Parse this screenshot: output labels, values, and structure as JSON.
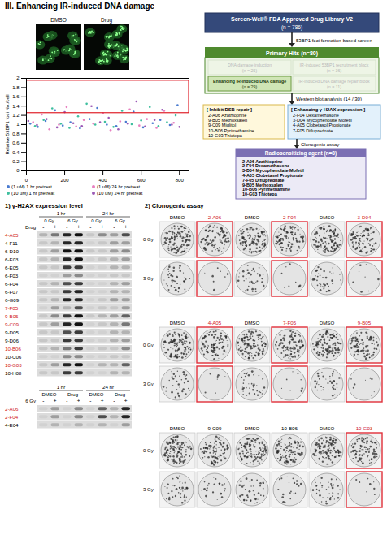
{
  "title": "III. Enhancing IR-induced DNA damage",
  "micrographs": {
    "labels": [
      "DMSO",
      "Drug"
    ]
  },
  "chart_data": {
    "type": "scatter",
    "ylabel": "Relative 53BP1 foci No./cell",
    "xlim": [
      0,
      850
    ],
    "xticks": [
      0,
      200,
      400,
      600,
      800
    ],
    "ylim": [
      0,
      2
    ],
    "yticks": [
      0,
      0.2,
      0.4,
      0.6,
      0.8,
      1,
      1.2,
      1.4,
      1.6,
      1.8,
      2
    ],
    "grid": false,
    "legend": "bottom",
    "highlight_box": {
      "x": [
        0,
        850
      ],
      "y": [
        1.25,
        1.95
      ],
      "color": "#e0202a"
    },
    "series": [
      {
        "name": "(1 uM) 1 hr pretreat",
        "color": "#4a7bd0",
        "x": [
          20,
          60,
          100,
          150,
          190,
          230,
          280,
          330,
          370,
          420,
          470,
          520,
          560,
          610,
          660,
          700,
          750,
          790
        ],
        "values": [
          1.02,
          0.95,
          1.08,
          1.31,
          0.98,
          1.05,
          0.92,
          1.12,
          1.36,
          1.0,
          0.97,
          1.06,
          1.28,
          0.94,
          1.03,
          1.1,
          0.99,
          1.42
        ]
      },
      {
        "name": "(1 uM) 24 hr pretreat",
        "color": "#e87fc0",
        "x": [
          35,
          80,
          120,
          170,
          210,
          260,
          300,
          350,
          400,
          440,
          490,
          540,
          590,
          630,
          680,
          720,
          770
        ],
        "values": [
          1.05,
          1.22,
          0.9,
          1.0,
          1.38,
          0.96,
          1.1,
          1.02,
          1.25,
          0.88,
          1.07,
          1.33,
          0.98,
          1.12,
          0.93,
          1.3,
          1.04
        ]
      },
      {
        "name": "(10 uM) 1 hr pretreat",
        "color": "#3fbf9f",
        "x": [
          45,
          90,
          135,
          180,
          225,
          270,
          315,
          360,
          410,
          455,
          500,
          550,
          600,
          645,
          690,
          735,
          780
        ],
        "values": [
          0.97,
          1.1,
          1.35,
          1.02,
          0.93,
          1.18,
          1.45,
          1.0,
          1.06,
          0.95,
          1.3,
          1.01,
          1.09,
          1.38,
          0.97,
          1.05,
          1.2
        ]
      },
      {
        "name": "(10 uM) 24 hr pretreat",
        "color": "#9b59b6",
        "x": [
          10,
          55,
          105,
          160,
          200,
          245,
          290,
          340,
          385,
          430,
          480,
          530,
          575,
          620,
          670,
          710,
          760,
          800
        ],
        "values": [
          1.08,
          0.99,
          1.12,
          0.94,
          1.27,
          1.03,
          0.97,
          1.4,
          1.05,
          1.15,
          0.9,
          1.02,
          1.5,
          0.96,
          1.1,
          1.32,
          1.0,
          0.95
        ]
      }
    ]
  },
  "flow": {
    "library": "Screen-Well® FDA Approved Drug Library V2",
    "library_n": "(n = 786)",
    "step1": "53BP1 foci formation-based screen",
    "primary": "Primary Hits (n=80)",
    "categories": [
      {
        "text": "DNA damage induction",
        "n": "(n = 25)",
        "selected": false
      },
      {
        "text": "IR-induced 53BP1 recruitment block",
        "n": "(n = 36)",
        "selected": false
      },
      {
        "text": "Enhancing IR-induced DNA damage",
        "n": "(n = 29)",
        "selected": true
      },
      {
        "text": "IR-induced DNA damage repair block",
        "n": "(n = 11)",
        "selected": false
      }
    ],
    "step2": "Western blot analysis (14 / 30)",
    "groups": [
      {
        "title": "[ Inhibit DSB repair ]",
        "items": [
          "2-A06 Azathioprine",
          "9-B05 Methoxsalen",
          "9-C09 Miglitol",
          "10-B06 Pyrimethamine",
          "10-G03 Thiotepa"
        ]
      },
      {
        "title": "[ Enhancing γ-H2AX expression ]",
        "items": [
          "2-F04 Dexamethasone",
          "3-D04 Mycophenolate Mofetil",
          "4-A05 Clobetasol Propionate",
          "7-F05 Difluprednate"
        ]
      }
    ],
    "step3": "Clonogenic assay",
    "result": {
      "title": "Radiosensitizing agent (n=8)",
      "items": [
        "2-A06 Azathioprine",
        "2-F04 Dexamethasone",
        "3-D04 Mycophenolate Mofetil",
        "4-A05 Clobetasol Propionate",
        "7-F05 Difluprednate",
        "9-B05 Methoxsalen",
        "10-B06 Pyrimethamine",
        "10-G03 Thiotepa"
      ]
    }
  },
  "western": {
    "title": "1) γ-H2AX expression level",
    "blot1": {
      "time": [
        "1 hr",
        "24 hr"
      ],
      "dose": [
        "0 Gy",
        "6 Gy",
        "0 Gy",
        "6 Gy"
      ],
      "row_header": "Drug",
      "lanes": [
        "-",
        "+",
        "-",
        "+",
        "-",
        "+",
        "-",
        "+"
      ],
      "rows": [
        {
          "label": "4-A05",
          "highlight": true,
          "bands": [
            0.2,
            0.5,
            0.9,
            1,
            0.1,
            0.4,
            0.3,
            0.7
          ]
        },
        {
          "label": "4-F11",
          "highlight": false,
          "bands": [
            0.1,
            0.2,
            0.9,
            0.9,
            0.05,
            0.1,
            0.3,
            0.3
          ]
        },
        {
          "label": "6-D10",
          "highlight": false,
          "bands": [
            0.1,
            0.3,
            1,
            1,
            0.1,
            0.1,
            0.3,
            0.4
          ]
        },
        {
          "label": "6-E03",
          "highlight": false,
          "bands": [
            0.1,
            0.2,
            0.9,
            1,
            0.05,
            0.1,
            0.2,
            0.3
          ]
        },
        {
          "label": "6-E05",
          "highlight": false,
          "bands": [
            0.1,
            0.1,
            0.8,
            0.8,
            0.05,
            0.05,
            0.2,
            0.2
          ]
        },
        {
          "label": "6-F03",
          "highlight": false,
          "bands": [
            0.05,
            0.05,
            0.3,
            0.4,
            0.05,
            0.05,
            0.1,
            0.1
          ]
        },
        {
          "label": "6-F04",
          "highlight": false,
          "bands": [
            0.1,
            0.2,
            0.7,
            0.8,
            0.05,
            0.05,
            0.2,
            0.3
          ]
        },
        {
          "label": "6-F07",
          "highlight": false,
          "bands": [
            0.1,
            0.1,
            0.8,
            0.9,
            0.05,
            0.05,
            0.2,
            0.2
          ]
        },
        {
          "label": "6-G09",
          "highlight": false,
          "bands": [
            0.1,
            0.2,
            0.9,
            0.9,
            0.05,
            0.1,
            0.3,
            0.3
          ]
        },
        {
          "label": "7-F05",
          "highlight": true,
          "bands": [
            0.05,
            0.3,
            0.2,
            0.7,
            0.05,
            0.1,
            0.1,
            0.3
          ]
        },
        {
          "label": "9-B05",
          "highlight": true,
          "bands": [
            0.1,
            0.4,
            0.8,
            1,
            0.1,
            0.2,
            0.3,
            0.6
          ]
        },
        {
          "label": "9-C09",
          "highlight": true,
          "bands": [
            0.1,
            0.3,
            0.9,
            1,
            0.05,
            0.1,
            0.2,
            0.5
          ]
        },
        {
          "label": "9-D05",
          "highlight": false,
          "bands": [
            0.1,
            0.1,
            0.7,
            0.8,
            0.05,
            0.05,
            0.2,
            0.2
          ]
        },
        {
          "label": "9-D06",
          "highlight": false,
          "bands": [
            0.1,
            0.1,
            0.8,
            0.8,
            0.05,
            0.05,
            0.2,
            0.3
          ]
        },
        {
          "label": "10-B06",
          "highlight": true,
          "bands": [
            0.1,
            0.2,
            0.5,
            0.8,
            0.05,
            0.1,
            0.1,
            0.4
          ]
        },
        {
          "label": "10-C06",
          "highlight": false,
          "bands": [
            0.05,
            0.05,
            0.4,
            0.4,
            0.05,
            0.05,
            0.1,
            0.1
          ]
        },
        {
          "label": "10-G03",
          "highlight": true,
          "bands": [
            0.1,
            0.3,
            0.9,
            1,
            0.05,
            0.2,
            0.2,
            0.6
          ]
        },
        {
          "label": "10-H08",
          "highlight": false,
          "bands": [
            0.1,
            0.1,
            0.8,
            0.8,
            0.05,
            0.05,
            0.2,
            0.2
          ]
        }
      ]
    },
    "blot2": {
      "time": [
        "1 hr",
        "24 hr"
      ],
      "treatment": [
        "DMSO",
        "Drug",
        "DMSO",
        "Drug"
      ],
      "row_header": "6 Gy",
      "lanes": [
        "-",
        "+",
        "-",
        "+",
        "-",
        "+",
        "-",
        "+"
      ],
      "rows": [
        {
          "label": "2-A06",
          "highlight": true,
          "bands": [
            0.05,
            0.3,
            0.05,
            0.4,
            0.05,
            0.6,
            0.2,
            0.9
          ]
        },
        {
          "label": "2-F04",
          "highlight": true,
          "bands": [
            0.05,
            0.3,
            0.05,
            0.4,
            0.05,
            0.7,
            0.2,
            0.9
          ]
        },
        {
          "label": "4-E04",
          "highlight": false,
          "bands": [
            0.05,
            0.2,
            0.05,
            0.2,
            0.05,
            0.2,
            0.05,
            0.3
          ]
        }
      ]
    }
  },
  "clonogenic": {
    "title": "2) Clonogenic assay",
    "doses": [
      "0 Gy",
      "3 Gy"
    ],
    "groups": [
      [
        {
          "label": "DMSO",
          "highlight": false
        },
        {
          "label": "2-A06",
          "highlight": true
        },
        {
          "label": "DMSO",
          "highlight": false
        },
        {
          "label": "2-F04",
          "highlight": true
        },
        {
          "label": "DMSO",
          "highlight": false
        },
        {
          "label": "3-D04",
          "highlight": true
        }
      ],
      [
        {
          "label": "DMSO",
          "highlight": false
        },
        {
          "label": "4-A05",
          "highlight": true
        },
        {
          "label": "DMSO",
          "highlight": false
        },
        {
          "label": "7-F05",
          "highlight": true
        },
        {
          "label": "DMSO",
          "highlight": false
        },
        {
          "label": "9-B05",
          "highlight": true
        }
      ],
      [
        {
          "label": "DMSO",
          "highlight": false
        },
        {
          "label": "9-C09",
          "highlight": false
        },
        {
          "label": "DMSO",
          "highlight": false
        },
        {
          "label": "10-B06",
          "highlight": false
        },
        {
          "label": "DMSO",
          "highlight": false
        },
        {
          "label": "10-G03",
          "highlight": true
        }
      ]
    ]
  }
}
